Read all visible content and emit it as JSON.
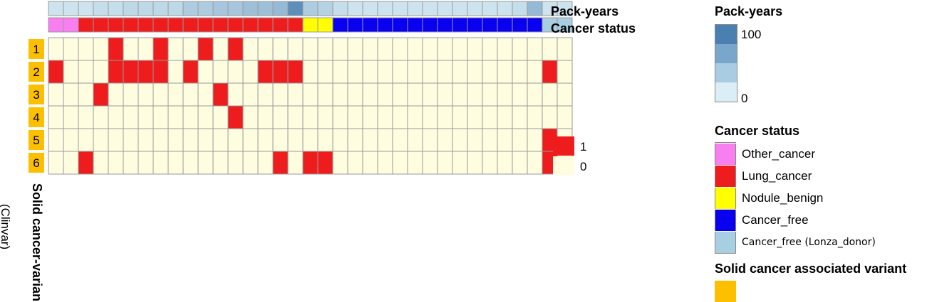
{
  "chart_data": {
    "type": "heatmap",
    "annotation_tracks": [
      {
        "name": "Pack-years",
        "values": [
          10,
          10,
          10,
          15,
          15,
          20,
          20,
          20,
          20,
          30,
          30,
          35,
          35,
          40,
          40,
          45,
          80,
          30,
          25,
          15,
          10,
          10,
          10,
          10,
          10,
          10,
          10,
          10,
          10,
          10,
          10,
          15,
          45,
          10,
          10
        ]
      },
      {
        "name": "Cancer status",
        "values": [
          "Other_cancer",
          "Other_cancer",
          "Lung_cancer",
          "Lung_cancer",
          "Lung_cancer",
          "Lung_cancer",
          "Lung_cancer",
          "Lung_cancer",
          "Lung_cancer",
          "Lung_cancer",
          "Lung_cancer",
          "Lung_cancer",
          "Lung_cancer",
          "Lung_cancer",
          "Lung_cancer",
          "Lung_cancer",
          "Lung_cancer",
          "Nodule_benign",
          "Nodule_benign",
          "Cancer_free",
          "Cancer_free",
          "Cancer_free",
          "Cancer_free",
          "Cancer_free",
          "Cancer_free",
          "Cancer_free",
          "Cancer_free",
          "Cancer_free",
          "Cancer_free",
          "Cancer_free",
          "Cancer_free",
          "Cancer_free",
          "Cancer_free",
          "Cancer_free (Lonza_donor)",
          "Cancer_free (Lonza_donor)"
        ]
      }
    ],
    "rows": [
      "1",
      "2",
      "3",
      "4",
      "5",
      "6"
    ],
    "row_title": "Solid cancer-variant",
    "row_subtitle": "(Clinvar)",
    "matrix": [
      [
        0,
        0,
        0,
        0,
        1,
        0,
        0,
        1,
        0,
        0,
        1,
        0,
        1,
        0,
        0,
        0,
        0,
        0,
        0,
        0,
        0,
        0,
        0,
        0,
        0,
        0,
        0,
        0,
        0,
        0,
        0,
        0,
        0,
        0,
        0
      ],
      [
        1,
        0,
        0,
        0,
        1,
        1,
        1,
        1,
        0,
        1,
        0,
        0,
        0,
        0,
        1,
        1,
        1,
        0,
        0,
        0,
        0,
        0,
        0,
        0,
        0,
        0,
        0,
        0,
        0,
        0,
        0,
        0,
        0,
        1,
        0
      ],
      [
        0,
        0,
        0,
        1,
        0,
        0,
        0,
        0,
        0,
        0,
        0,
        1,
        0,
        0,
        0,
        0,
        0,
        0,
        0,
        0,
        0,
        0,
        0,
        0,
        0,
        0,
        0,
        0,
        0,
        0,
        0,
        0,
        0,
        0,
        0
      ],
      [
        0,
        0,
        0,
        0,
        0,
        0,
        0,
        0,
        0,
        0,
        0,
        0,
        1,
        0,
        0,
        0,
        0,
        0,
        0,
        0,
        0,
        0,
        0,
        0,
        0,
        0,
        0,
        0,
        0,
        0,
        0,
        0,
        0,
        0,
        0
      ],
      [
        0,
        0,
        0,
        0,
        0,
        0,
        0,
        0,
        0,
        0,
        0,
        0,
        0,
        0,
        0,
        0,
        0,
        0,
        0,
        0,
        0,
        0,
        0,
        0,
        0,
        0,
        0,
        0,
        0,
        0,
        0,
        0,
        0,
        1,
        0
      ],
      [
        0,
        0,
        1,
        0,
        0,
        0,
        0,
        0,
        0,
        0,
        0,
        0,
        0,
        0,
        0,
        1,
        0,
        1,
        1,
        0,
        0,
        0,
        0,
        0,
        0,
        0,
        0,
        0,
        0,
        0,
        0,
        0,
        0,
        1,
        0
      ]
    ],
    "value_legend": [
      {
        "value": "1",
        "color": "#ee1c1c"
      },
      {
        "value": "0",
        "color": "#fffde0"
      }
    ]
  },
  "colors": {
    "Other_cancer": "#f77ff0",
    "Lung_cancer": "#ee1c1c",
    "Nodule_benign": "#ffff00",
    "Cancer_free": "#0a00f0",
    "Cancer_free (Lonza_donor)": "#a7cfe2",
    "variant_row": "#fcc000",
    "cell_border": "#9a9a9a",
    "pack_low": "#ddf0f6",
    "pack_high": "#3e77ac"
  },
  "legends": {
    "pack_years": {
      "title": "Pack-years",
      "max_label": "100",
      "min_label": "0",
      "min_value": 0,
      "max_value": 100
    },
    "cancer_status": {
      "title": "Cancer status",
      "items": [
        {
          "label": "Other_cancer",
          "color": "#f77ff0"
        },
        {
          "label": "Lung_cancer",
          "color": "#ee1c1c"
        },
        {
          "label": "Nodule_benign",
          "color": "#ffff00"
        },
        {
          "label": "Cancer_free",
          "color": "#0a00f0"
        },
        {
          "label": "Cancer_free (Lonza_donor)",
          "color": "#a7cfe2"
        }
      ]
    },
    "variant": {
      "title": "Solid cancer associated variant",
      "color": "#fcc000"
    }
  }
}
